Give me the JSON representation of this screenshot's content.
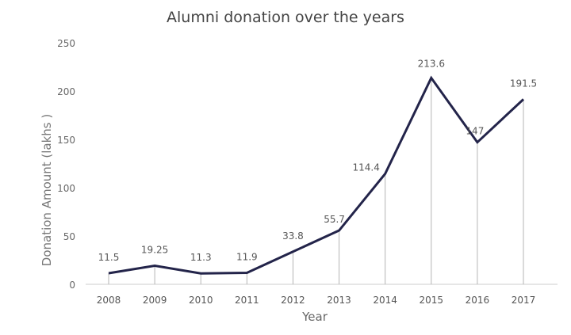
{
  "chart_data": {
    "type": "line",
    "title": "Alumni donation over the years",
    "xlabel": "Year",
    "ylabel": "Donation Amount (lakhs )",
    "categories": [
      "2008",
      "2009",
      "2010",
      "2011",
      "2012",
      "2013",
      "2014",
      "2015",
      "2016",
      "2017"
    ],
    "values": [
      11.5,
      19.25,
      11.3,
      11.9,
      33.8,
      55.7,
      114.4,
      213.6,
      147,
      191.5
    ],
    "data_labels": [
      "11.5",
      "19.25",
      "11.3",
      "11.9",
      "33.8",
      "55.7",
      "114.4",
      "213.6",
      "147",
      "191.5"
    ],
    "ylim": [
      0,
      250
    ],
    "yticks": [
      "0",
      "50",
      "100",
      "150",
      "200",
      "250"
    ],
    "grid": false,
    "drop_lines": true,
    "line_color": "#23244a",
    "drop_line_color": "#b5b5b5"
  }
}
